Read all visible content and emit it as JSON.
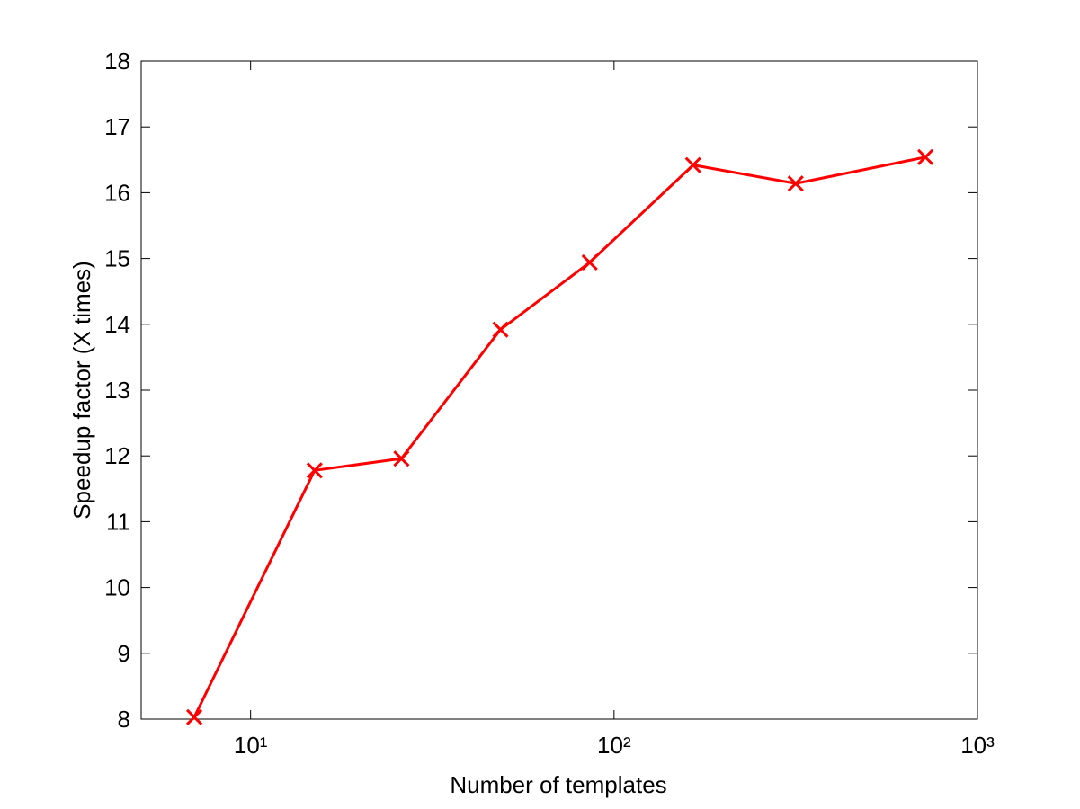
{
  "chart_data": {
    "type": "line",
    "xlabel": "Number of templates",
    "ylabel": "Speedup factor (X times)",
    "x": [
      7,
      15,
      26,
      48.7,
      85.7,
      165,
      316,
      719
    ],
    "series": [
      {
        "color": "#ff0000",
        "values": [
          8.03,
          11.78,
          11.96,
          13.92,
          14.94,
          16.42,
          16.14,
          16.54
        ]
      }
    ],
    "xscale": "log",
    "xlim": [
      5,
      1000
    ],
    "xticks": [
      {
        "value": 10,
        "label": "10¹"
      },
      {
        "value": 100,
        "label": "10²"
      },
      {
        "value": 1000,
        "label": "10³"
      }
    ],
    "ylim": [
      8,
      18
    ],
    "yticks": [
      8,
      9,
      10,
      11,
      12,
      13,
      14,
      15,
      16,
      17,
      18
    ],
    "grid": false
  }
}
